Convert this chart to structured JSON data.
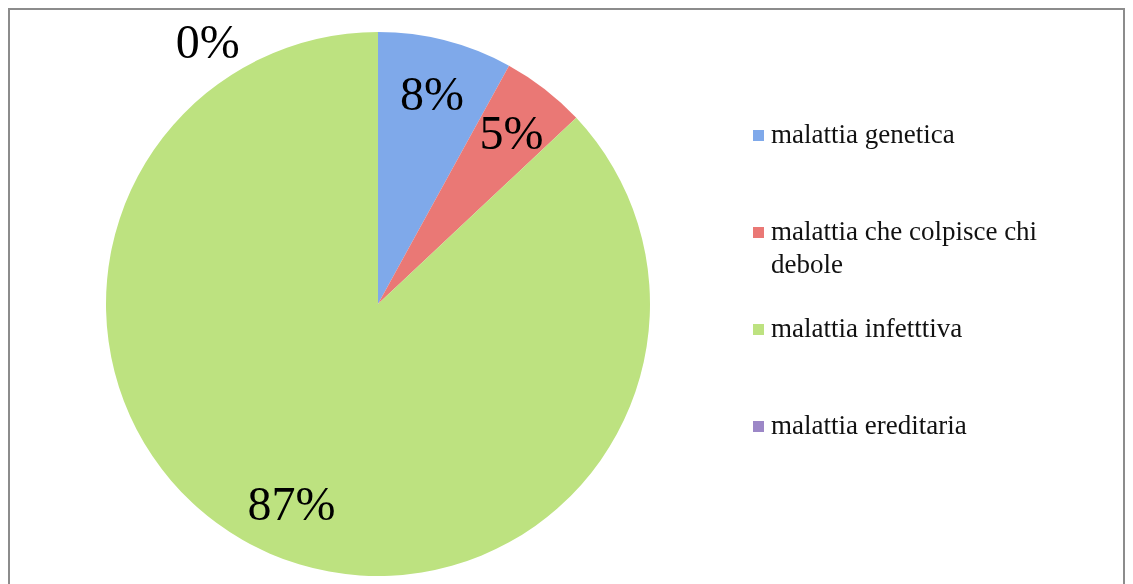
{
  "chart_data": {
    "type": "pie",
    "categories": [
      "malattia genetica",
      "malattia che colpisce chi debole",
      "malattia infetttiva",
      "malattia ereditaria"
    ],
    "values": [
      8,
      5,
      87,
      0
    ],
    "colors": [
      "#7fa9ea",
      "#ea7875",
      "#bde280",
      "#9c87c7"
    ],
    "value_labels": [
      "8%",
      "5%",
      "87%",
      "0%"
    ],
    "legend": "right"
  }
}
